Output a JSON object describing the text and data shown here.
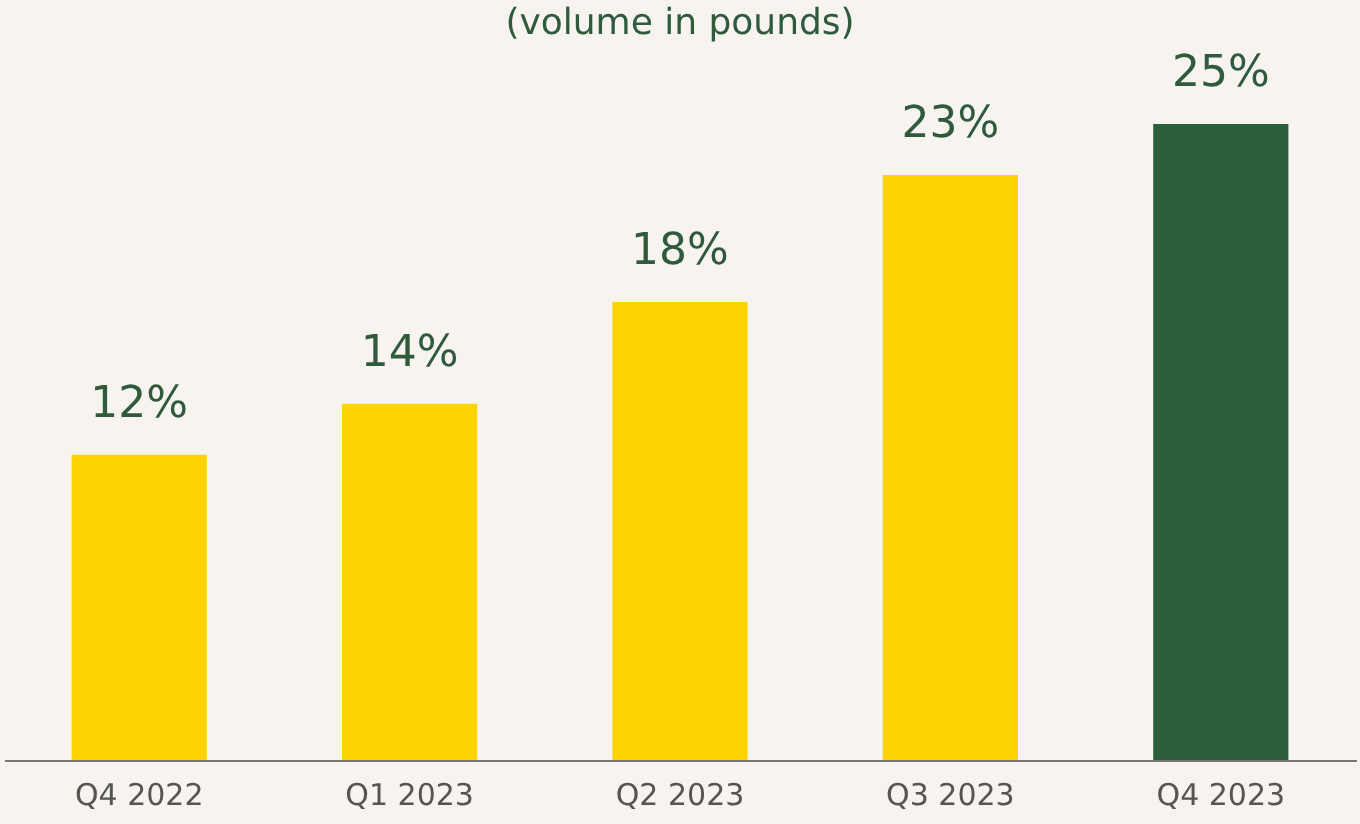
{
  "chart_data": {
    "type": "bar",
    "subtitle": "(volume in pounds)",
    "categories": [
      "Q4 2022",
      "Q1 2023",
      "Q2 2023",
      "Q3 2023",
      "Q4 2023"
    ],
    "values": [
      12,
      14,
      18,
      23,
      25
    ],
    "colors": [
      "#fdd400",
      "#fdd400",
      "#fdd400",
      "#fdd400",
      "#2a5e3b"
    ],
    "value_labels": [
      "12%",
      "14%",
      "18%",
      "23%",
      "25%"
    ]
  }
}
